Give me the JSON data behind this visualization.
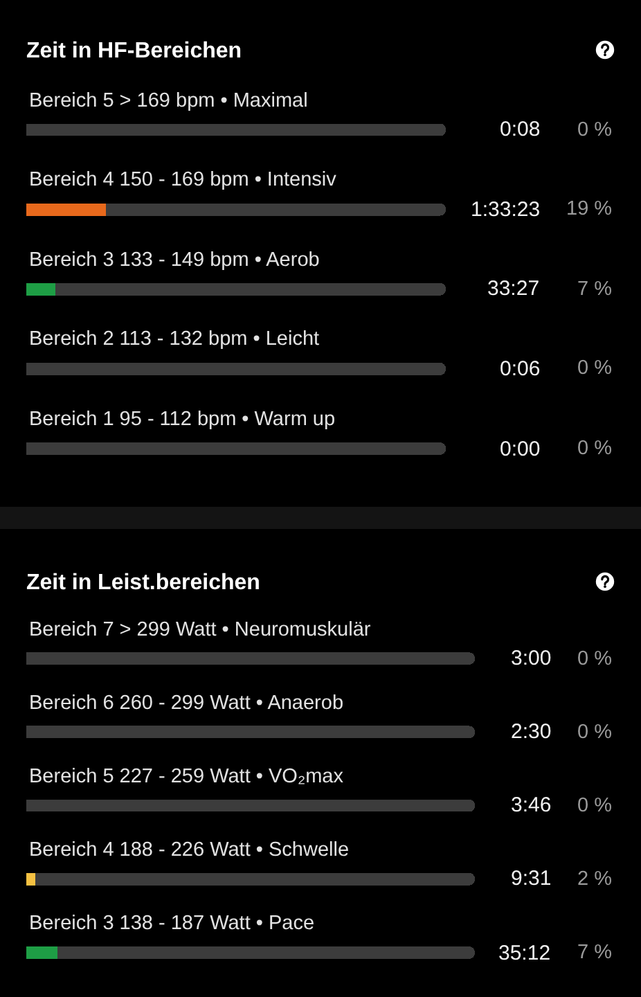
{
  "chart_data": [
    {
      "type": "bar",
      "orientation": "horizontal",
      "stacked": true,
      "title": "Zeit in HF-Bereichen",
      "categories": [
        "Bereich 5 > 169 bpm • Maximal",
        "Bereich 4 150 - 169 bpm • Intensiv",
        "Bereich 3 133 - 149 bpm • Aerob",
        "Bereich 2 113 - 132 bpm • Leicht",
        "Bereich 1 95 - 112 bpm • Warm up"
      ],
      "series": [
        {
          "values": [
            0,
            19,
            7,
            0,
            0
          ],
          "colors": [
            null,
            "#e8691c",
            "#1e9e45",
            null,
            null
          ],
          "value_labels": [
            "0 %",
            "19 %",
            "7 %",
            "0 %",
            "0 %"
          ]
        },
        {
          "color": "#3c3c3c",
          "values": [
            100,
            81,
            93,
            100,
            100
          ]
        }
      ],
      "xlim": [
        0,
        100
      ],
      "annotations": [
        "0:08",
        "1:33:23",
        "33:27",
        "0:06",
        "0:00"
      ]
    },
    {
      "type": "bar",
      "orientation": "horizontal",
      "stacked": true,
      "title": "Zeit in Leist.bereichen",
      "categories": [
        "Bereich 7 > 299 Watt • Neuromuskulär",
        "Bereich 6 260 - 299 Watt • Anaerob",
        "Bereich 5 227 - 259 Watt • VO₂max",
        "Bereich 4 188 - 226 Watt • Schwelle",
        "Bereich 3 138 - 187 Watt • Pace"
      ],
      "series": [
        {
          "values": [
            0,
            0,
            0,
            2,
            7
          ],
          "colors": [
            null,
            null,
            null,
            "#f5c142",
            "#1e9e45"
          ],
          "value_labels": [
            "0 %",
            "0 %",
            "0 %",
            "2 %",
            "7 %"
          ]
        },
        {
          "color": "#3c3c3c",
          "values": [
            100,
            100,
            100,
            98,
            93
          ]
        }
      ],
      "xlim": [
        0,
        100
      ],
      "annotations": [
        "3:00",
        "2:30",
        "3:46",
        "9:31",
        "35:12"
      ]
    }
  ]
}
